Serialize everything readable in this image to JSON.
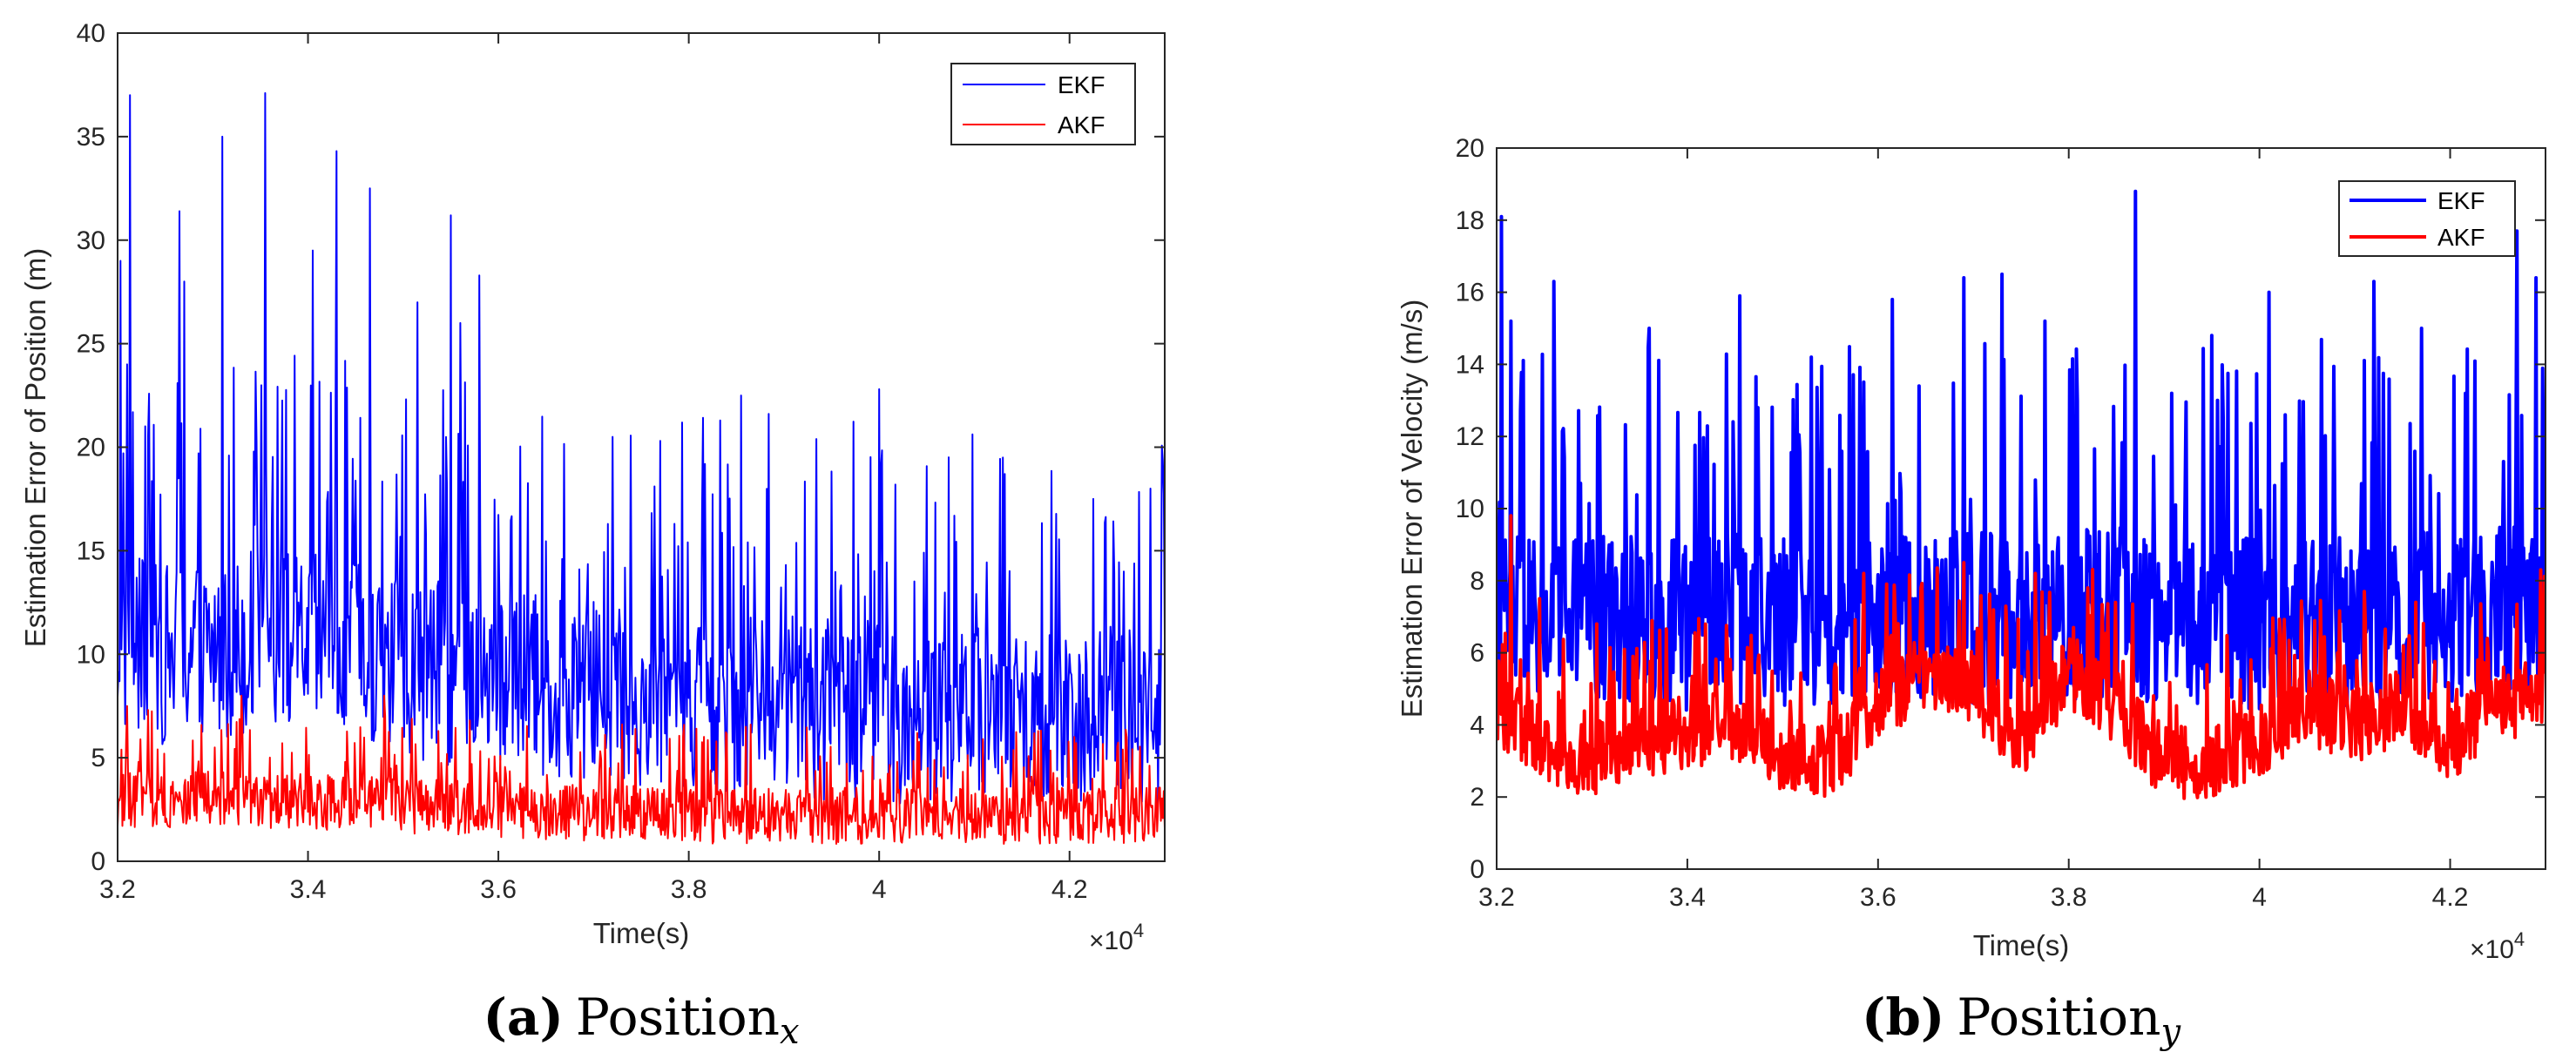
{
  "chart_data": [
    {
      "type": "line",
      "panel": "a",
      "caption_letter": "(a)",
      "caption_text": "Position",
      "caption_sub": "x",
      "xlabel": "Time(s)",
      "ylabel": "Estimation Error of Position (m)",
      "xlim": [
        32000,
        43000
      ],
      "ylim": [
        0,
        40
      ],
      "xticks": [
        32000,
        34000,
        36000,
        38000,
        40000,
        42000
      ],
      "xtick_labels": [
        "3.2",
        "3.4",
        "3.6",
        "3.8",
        "4",
        "4.2"
      ],
      "yticks": [
        0,
        5,
        10,
        15,
        20,
        25,
        30,
        35,
        40
      ],
      "ytick_labels": [
        "0",
        "5",
        "10",
        "15",
        "20",
        "25",
        "30",
        "35",
        "40"
      ],
      "x_multiplier": "×10",
      "x_multiplier_exp": "4",
      "legend_position": "top-right",
      "grid": false,
      "series": [
        {
          "name": "EKF",
          "color": "#0000ff",
          "stroke": 2,
          "x": [
            32000,
            32500,
            33000,
            33500,
            34000,
            34500,
            35000,
            35500,
            36000,
            36500,
            37000,
            37500,
            38000,
            38500,
            39000,
            39500,
            40000,
            40500,
            41000,
            41500,
            42000,
            42500,
            43000
          ],
          "values": [
            10.5,
            10.0,
            10.2,
            10.8,
            10.5,
            10.0,
            9.5,
            9.0,
            8.8,
            8.5,
            8.2,
            8.0,
            7.8,
            7.6,
            7.5,
            7.3,
            7.2,
            7.0,
            7.0,
            7.1,
            7.2,
            7.0,
            7.2
          ],
          "spread": 5.5,
          "peaks": [
            [
              32030,
              29
            ],
            [
              32100,
              24
            ],
            [
              32130,
              37
            ],
            [
              32650,
              31.4
            ],
            [
              32700,
              28
            ],
            [
              33100,
              35
            ],
            [
              33550,
              37.1
            ],
            [
              34050,
              29.5
            ],
            [
              34300,
              34.3
            ],
            [
              34650,
              32.5
            ],
            [
              35150,
              27
            ],
            [
              35500,
              31.2
            ],
            [
              35800,
              28.3
            ],
            [
              35600,
              26
            ],
            [
              37200,
              20.5
            ],
            [
              38550,
              22.5
            ],
            [
              40000,
              22.8
            ],
            [
              41300,
              19.5
            ],
            [
              42250,
              17.5
            ],
            [
              42850,
              18.0
            ]
          ]
        },
        {
          "name": "AKF",
          "color": "#ff0000",
          "stroke": 2,
          "x": [
            32000,
            32500,
            33000,
            33500,
            34000,
            34500,
            35000,
            35500,
            36000,
            36500,
            37000,
            37500,
            38000,
            38500,
            39000,
            39500,
            40000,
            40500,
            41000,
            41500,
            42000,
            42500,
            43000
          ],
          "values": [
            3.0,
            3.0,
            3.0,
            2.9,
            2.9,
            2.8,
            2.7,
            2.6,
            2.5,
            2.4,
            2.3,
            2.3,
            2.2,
            2.2,
            2.2,
            2.2,
            2.2,
            2.2,
            2.2,
            2.2,
            2.2,
            2.2,
            2.2
          ],
          "spread": 1.7,
          "peaks": [
            [
              32100,
              7.5
            ],
            [
              33300,
              8.0
            ],
            [
              34800,
              8.0
            ],
            [
              35700,
              6.8
            ],
            [
              38600,
              6.5
            ],
            [
              40400,
              6.2
            ],
            [
              42600,
              6.0
            ]
          ]
        }
      ]
    },
    {
      "type": "line",
      "panel": "b",
      "caption_letter": "(b)",
      "caption_text": "Position",
      "caption_sub": "y",
      "xlabel": "Time(s)",
      "ylabel": "Estimation Error of Velocity (m/s)",
      "xlim": [
        32000,
        43000
      ],
      "ylim": [
        0,
        20
      ],
      "xticks": [
        32000,
        34000,
        36000,
        38000,
        40000,
        42000
      ],
      "xtick_labels": [
        "3.2",
        "3.4",
        "3.6",
        "3.8",
        "4",
        "4.2"
      ],
      "yticks": [
        0,
        2,
        4,
        6,
        8,
        10,
        12,
        14,
        16,
        18,
        20
      ],
      "ytick_labels": [
        "0",
        "2",
        "4",
        "6",
        "8",
        "10",
        "12",
        "14",
        "16",
        "18",
        "20"
      ],
      "x_multiplier": "×10",
      "x_multiplier_exp": "4",
      "legend_position": "top-right",
      "grid": false,
      "series": [
        {
          "name": "EKF",
          "color": "#0000ff",
          "stroke": 4,
          "x": [
            32000,
            32500,
            33000,
            33500,
            34000,
            34500,
            35000,
            35500,
            36000,
            36500,
            37000,
            37500,
            38000,
            38500,
            39000,
            39500,
            40000,
            40500,
            41000,
            41500,
            42000,
            42500,
            43000
          ],
          "values": [
            7.0,
            6.8,
            6.9,
            7.0,
            6.8,
            7.0,
            6.9,
            6.7,
            6.8,
            7.0,
            7.0,
            6.9,
            7.0,
            7.1,
            7.0,
            6.9,
            6.8,
            7.0,
            6.9,
            7.0,
            7.0,
            7.1,
            7.2
          ],
          "spread": 3.0,
          "peaks": [
            [
              32050,
              18.1
            ],
            [
              32150,
              15.2
            ],
            [
              32600,
              16.3
            ],
            [
              33600,
              15.0
            ],
            [
              34550,
              15.9
            ],
            [
              35300,
              14.2
            ],
            [
              36150,
              15.8
            ],
            [
              36900,
              16.4
            ],
            [
              37300,
              16.5
            ],
            [
              37750,
              15.2
            ],
            [
              38700,
              18.8
            ],
            [
              39500,
              14.8
            ],
            [
              40100,
              16.0
            ],
            [
              41200,
              16.3
            ],
            [
              41700,
              15.0
            ],
            [
              42700,
              17.7
            ],
            [
              42900,
              16.4
            ]
          ]
        },
        {
          "name": "AKF",
          "color": "#ff0000",
          "stroke": 4,
          "x": [
            32000,
            32500,
            33000,
            33500,
            34000,
            34500,
            35000,
            35500,
            36000,
            36500,
            37000,
            37500,
            38000,
            38500,
            39000,
            39500,
            40000,
            40500,
            41000,
            41500,
            42000,
            42500,
            43000
          ],
          "values": [
            4.5,
            3.5,
            3.0,
            3.5,
            3.8,
            4.0,
            3.2,
            3.0,
            4.5,
            5.5,
            5.0,
            3.5,
            5.5,
            4.5,
            3.0,
            3.0,
            3.5,
            4.5,
            4.0,
            4.5,
            3.5,
            4.5,
            5.0
          ],
          "spread": 1.3,
          "peaks": [
            [
              32150,
              9.8
            ],
            [
              32450,
              7.5
            ],
            [
              33050,
              6.8
            ],
            [
              35850,
              8.2
            ],
            [
              36450,
              7.8
            ],
            [
              36900,
              8.5
            ],
            [
              37650,
              8.2
            ],
            [
              38200,
              7.8
            ],
            [
              41100,
              7.7
            ],
            [
              42400,
              6.0
            ],
            [
              42950,
              8.3
            ]
          ]
        }
      ]
    }
  ]
}
